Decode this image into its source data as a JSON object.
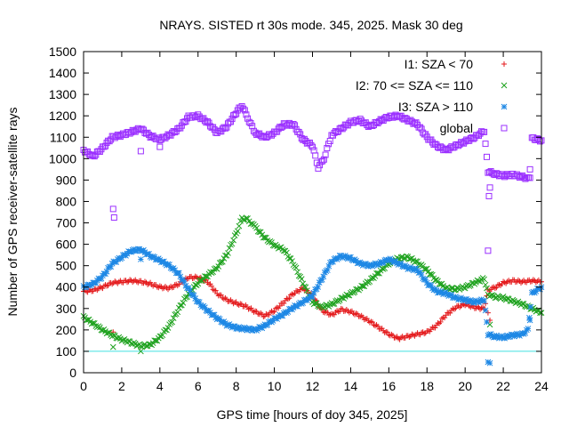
{
  "chart_data": {
    "type": "scatter",
    "title": "NRAYS. SISTED rt 30s mode. 345, 2025. Mask 30 deg",
    "xlabel": "GPS time [hours of doy 345, 2025]",
    "ylabel": "Number of GPS receiver-satellite rays",
    "xlim": [
      0,
      24
    ],
    "ylim": [
      0,
      1500
    ],
    "xticks": [
      "0",
      "2",
      "4",
      "6",
      "8",
      "10",
      "12",
      "14",
      "16",
      "18",
      "20",
      "22",
      "24"
    ],
    "yticks": [
      "0",
      "100",
      "200",
      "300",
      "400",
      "500",
      "600",
      "700",
      "800",
      "900",
      "1000",
      "1100",
      "1200",
      "1300",
      "1400",
      "1500"
    ],
    "grid": false,
    "legend_position": "top-right",
    "threshold_line": {
      "y": 100,
      "color": "#40e0e0"
    },
    "series": [
      {
        "name": "I1: SZA < 70",
        "marker": "plus",
        "color": "#e41a1c",
        "points": [
          [
            0,
            380
          ],
          [
            0.5,
            385
          ],
          [
            1,
            400
          ],
          [
            1.5,
            420
          ],
          [
            2,
            425
          ],
          [
            2.5,
            430
          ],
          [
            3,
            425
          ],
          [
            3.5,
            415
          ],
          [
            4,
            400
          ],
          [
            4.5,
            395
          ],
          [
            5,
            415
          ],
          [
            5.5,
            445
          ],
          [
            6,
            445
          ],
          [
            6.5,
            425
          ],
          [
            7,
            370
          ],
          [
            7.5,
            340
          ],
          [
            8,
            325
          ],
          [
            8.5,
            310
          ],
          [
            9,
            285
          ],
          [
            9.5,
            265
          ],
          [
            10,
            290
          ],
          [
            10.5,
            330
          ],
          [
            11,
            370
          ],
          [
            11.5,
            395
          ],
          [
            12,
            360
          ],
          [
            12.5,
            290
          ],
          [
            13,
            270
          ],
          [
            13.5,
            295
          ],
          [
            14,
            285
          ],
          [
            14.5,
            265
          ],
          [
            15,
            240
          ],
          [
            15.5,
            210
          ],
          [
            16,
            180
          ],
          [
            16.5,
            160
          ],
          [
            17,
            170
          ],
          [
            17.5,
            180
          ],
          [
            18,
            190
          ],
          [
            18.5,
            220
          ],
          [
            19,
            270
          ],
          [
            19.5,
            305
          ],
          [
            20,
            320
          ],
          [
            20.5,
            305
          ],
          [
            21,
            300
          ],
          [
            21.2,
            385
          ],
          [
            21.5,
            395
          ],
          [
            22,
            420
          ],
          [
            22.5,
            430
          ],
          [
            23,
            425
          ],
          [
            23.5,
            430
          ],
          [
            24,
            425
          ]
        ],
        "outliers": [
          [
            1.55,
            190
          ],
          [
            21.2,
            280
          ],
          [
            21.3,
            245
          ]
        ]
      },
      {
        "name": "I2: 70 <= SZA <= 110",
        "marker": "x",
        "color": "#1fa21f",
        "points": [
          [
            0,
            260
          ],
          [
            0.5,
            230
          ],
          [
            1,
            200
          ],
          [
            1.5,
            175
          ],
          [
            2,
            155
          ],
          [
            2.5,
            140
          ],
          [
            3,
            125
          ],
          [
            3.5,
            130
          ],
          [
            4,
            165
          ],
          [
            4.5,
            220
          ],
          [
            5,
            300
          ],
          [
            5.5,
            370
          ],
          [
            6,
            420
          ],
          [
            6.5,
            455
          ],
          [
            7,
            490
          ],
          [
            7.5,
            550
          ],
          [
            8,
            650
          ],
          [
            8.3,
            720
          ],
          [
            8.6,
            715
          ],
          [
            9,
            680
          ],
          [
            9.5,
            630
          ],
          [
            10,
            595
          ],
          [
            10.5,
            575
          ],
          [
            11,
            510
          ],
          [
            11.5,
            420
          ],
          [
            12,
            330
          ],
          [
            12.5,
            305
          ],
          [
            13,
            320
          ],
          [
            13.5,
            345
          ],
          [
            14,
            370
          ],
          [
            14.5,
            395
          ],
          [
            15,
            430
          ],
          [
            15.5,
            470
          ],
          [
            16,
            510
          ],
          [
            16.5,
            535
          ],
          [
            17,
            540
          ],
          [
            17.5,
            515
          ],
          [
            18,
            480
          ],
          [
            18.5,
            430
          ],
          [
            19,
            395
          ],
          [
            19.5,
            390
          ],
          [
            20,
            400
          ],
          [
            20.5,
            420
          ],
          [
            21,
            440
          ],
          [
            21.2,
            365
          ],
          [
            21.5,
            355
          ],
          [
            22,
            350
          ],
          [
            22.5,
            335
          ],
          [
            23,
            320
          ],
          [
            23.5,
            300
          ],
          [
            24,
            280
          ]
        ],
        "outliers": [
          [
            1.55,
            120
          ],
          [
            3,
            100
          ],
          [
            21.3,
            225
          ]
        ]
      },
      {
        "name": "I3: SZA > 110",
        "marker": "star",
        "color": "#1e88e5",
        "points": [
          [
            0,
            400
          ],
          [
            0.5,
            415
          ],
          [
            1,
            450
          ],
          [
            1.5,
            510
          ],
          [
            2,
            540
          ],
          [
            2.5,
            570
          ],
          [
            3,
            575
          ],
          [
            3.5,
            545
          ],
          [
            4,
            525
          ],
          [
            4.5,
            500
          ],
          [
            5,
            460
          ],
          [
            5.5,
            390
          ],
          [
            6,
            330
          ],
          [
            6.5,
            290
          ],
          [
            7,
            255
          ],
          [
            7.5,
            225
          ],
          [
            8,
            210
          ],
          [
            8.5,
            205
          ],
          [
            9,
            200
          ],
          [
            9.5,
            220
          ],
          [
            10,
            250
          ],
          [
            10.5,
            275
          ],
          [
            11,
            305
          ],
          [
            11.5,
            330
          ],
          [
            12,
            360
          ],
          [
            12.5,
            440
          ],
          [
            13,
            520
          ],
          [
            13.5,
            545
          ],
          [
            14,
            535
          ],
          [
            14.5,
            510
          ],
          [
            15,
            500
          ],
          [
            15.5,
            510
          ],
          [
            16,
            530
          ],
          [
            16.5,
            510
          ],
          [
            17,
            490
          ],
          [
            17.5,
            480
          ],
          [
            18,
            420
          ],
          [
            18.5,
            380
          ],
          [
            19,
            370
          ],
          [
            19.5,
            350
          ],
          [
            20,
            340
          ],
          [
            20.5,
            330
          ],
          [
            21,
            340
          ],
          [
            21.2,
            180
          ],
          [
            21.5,
            170
          ],
          [
            22,
            165
          ],
          [
            22.5,
            175
          ],
          [
            23,
            180
          ],
          [
            23.3,
            200
          ],
          [
            23.5,
            370
          ],
          [
            24,
            400
          ]
        ],
        "outliers": [
          [
            3,
            530
          ],
          [
            21.2,
            50
          ],
          [
            21.3,
            45
          ],
          [
            23.4,
            245
          ]
        ]
      },
      {
        "name": "global",
        "marker": "open-square",
        "color": "#9b30ff",
        "points": [
          [
            0,
            1040
          ],
          [
            0.5,
            1010
          ],
          [
            1,
            1050
          ],
          [
            1.5,
            1100
          ],
          [
            2,
            1110
          ],
          [
            2.5,
            1125
          ],
          [
            3,
            1140
          ],
          [
            3.5,
            1105
          ],
          [
            4,
            1090
          ],
          [
            4.5,
            1110
          ],
          [
            5,
            1140
          ],
          [
            5.5,
            1195
          ],
          [
            6,
            1200
          ],
          [
            6.5,
            1170
          ],
          [
            7,
            1120
          ],
          [
            7.5,
            1150
          ],
          [
            8,
            1215
          ],
          [
            8.3,
            1250
          ],
          [
            8.6,
            1190
          ],
          [
            9,
            1120
          ],
          [
            9.5,
            1100
          ],
          [
            10,
            1120
          ],
          [
            10.5,
            1160
          ],
          [
            11,
            1160
          ],
          [
            11.5,
            1090
          ],
          [
            12,
            1060
          ],
          [
            12.3,
            960
          ],
          [
            12.6,
            1000
          ],
          [
            13,
            1110
          ],
          [
            13.5,
            1140
          ],
          [
            14,
            1170
          ],
          [
            14.5,
            1180
          ],
          [
            15,
            1150
          ],
          [
            15.5,
            1175
          ],
          [
            16,
            1195
          ],
          [
            16.5,
            1200
          ],
          [
            17,
            1180
          ],
          [
            17.5,
            1160
          ],
          [
            18,
            1100
          ],
          [
            18.5,
            1060
          ],
          [
            19,
            1040
          ],
          [
            19.5,
            1060
          ],
          [
            20,
            1080
          ],
          [
            20.5,
            1100
          ],
          [
            21,
            1130
          ],
          [
            21.2,
            940
          ],
          [
            21.5,
            930
          ],
          [
            22,
            920
          ],
          [
            22.5,
            925
          ],
          [
            23,
            915
          ],
          [
            23.4,
            905
          ],
          [
            23.5,
            1095
          ],
          [
            24,
            1085
          ]
        ],
        "outliers": [
          [
            1.55,
            765
          ],
          [
            1.6,
            725
          ],
          [
            3,
            1035
          ],
          [
            4,
            1055
          ],
          [
            21.2,
            570
          ],
          [
            21.25,
            825
          ],
          [
            21.3,
            865
          ],
          [
            23.4,
            950
          ]
        ]
      }
    ]
  }
}
